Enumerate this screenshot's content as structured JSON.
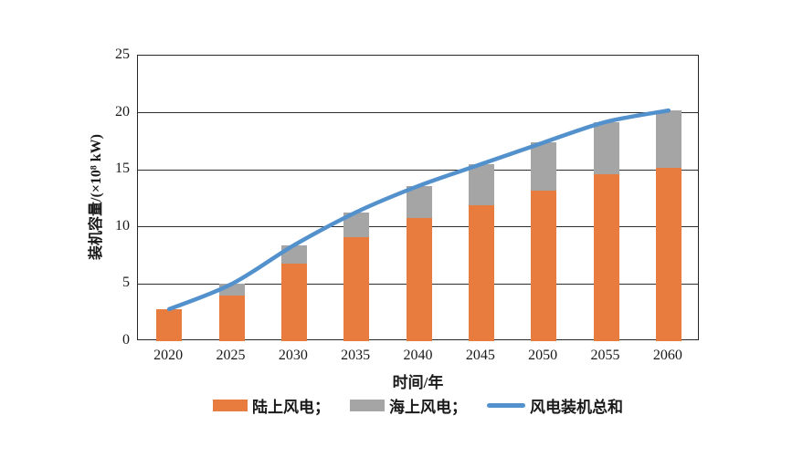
{
  "chart_data": {
    "type": "bar",
    "stacked": true,
    "title": "",
    "xlabel": "时间/年",
    "ylabel": "装机容量/(×10⁸ kW)",
    "categories": [
      "2020",
      "2025",
      "2030",
      "2035",
      "2040",
      "2045",
      "2050",
      "2055",
      "2060"
    ],
    "series": [
      {
        "name": "陆上风电",
        "type": "bar",
        "color": "#E87B3E",
        "values": [
          2.8,
          4.0,
          6.8,
          9.1,
          10.8,
          11.9,
          13.2,
          14.6,
          15.2
        ]
      },
      {
        "name": "海上风电",
        "type": "bar",
        "color": "#A5A5A5",
        "values": [
          0.0,
          1.0,
          1.6,
          2.2,
          2.8,
          3.6,
          4.2,
          4.6,
          5.0
        ]
      },
      {
        "name": "风电装机总和",
        "type": "line",
        "color": "#5391CD",
        "values": [
          2.8,
          5.0,
          8.4,
          11.3,
          13.6,
          15.5,
          17.4,
          19.2,
          20.2
        ]
      }
    ],
    "ylim": [
      0,
      25
    ],
    "yticks": [
      0,
      5,
      10,
      15,
      20,
      25
    ],
    "grid": "horizontal",
    "legend_position": "bottom"
  },
  "legend": {
    "items": [
      {
        "label": "陆上风电；",
        "swatch": "bar"
      },
      {
        "label": "海上风电；",
        "swatch": "bar"
      },
      {
        "label": "风电装机总和",
        "swatch": "line"
      }
    ]
  }
}
